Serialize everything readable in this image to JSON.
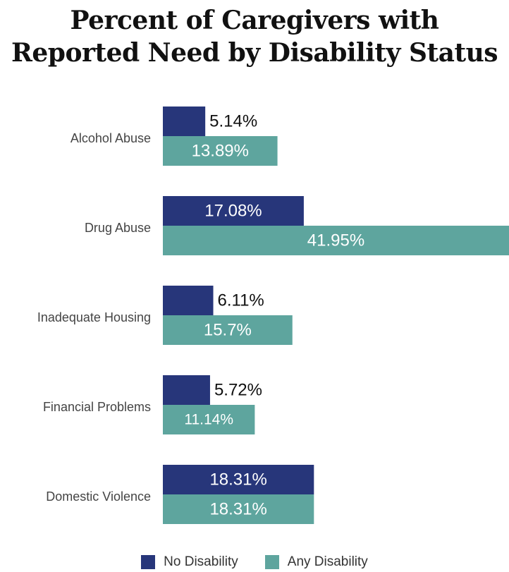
{
  "chart_data": {
    "type": "bar",
    "orientation": "horizontal",
    "title": "Percent of Caregivers with Reported Need by Disability Status",
    "title_lines": [
      "Percent of Caregivers with",
      "Reported Need by Disability Status"
    ],
    "categories": [
      "Alcohol Abuse",
      "Drug Abuse",
      "Inadequate Housing",
      "Financial Problems",
      "Domestic Violence"
    ],
    "series": [
      {
        "name": "No Disability",
        "color": "#27367a",
        "values": [
          5.14,
          17.08,
          6.11,
          5.72,
          18.31
        ],
        "labels": [
          "5.14%",
          "17.08%",
          "6.11%",
          "5.72%",
          "18.31%"
        ]
      },
      {
        "name": "Any Disability",
        "color": "#5ea59e",
        "values": [
          13.89,
          41.95,
          15.7,
          11.14,
          18.31
        ],
        "labels": [
          "13.89%",
          "41.95%",
          "15.7%",
          "11.14%",
          "18.31%"
        ]
      }
    ],
    "xlim": [
      0,
      41.95
    ],
    "grid": false,
    "legend_position": "bottom"
  }
}
